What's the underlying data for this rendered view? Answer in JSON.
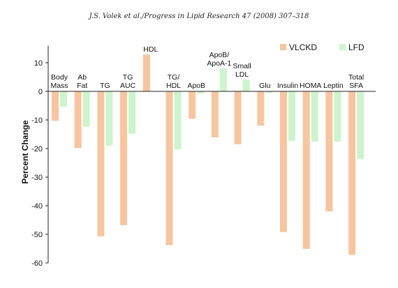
{
  "header": "J.S. Volek et al./Progress in Lipid Research 47 (2008) 307–318",
  "chart_data": {
    "type": "bar",
    "ylabel": "Percent Change",
    "ylim": [
      -60,
      15
    ],
    "yticks": [
      10,
      0,
      -10,
      -20,
      -30,
      -40,
      -50,
      -60
    ],
    "legend": "top-right",
    "categories": [
      [
        "Body",
        "Mass"
      ],
      [
        "Ab",
        "Fat"
      ],
      [
        "TG"
      ],
      [
        "TG",
        "AUC"
      ],
      [
        "HDL"
      ],
      [
        "TG/",
        "HDL"
      ],
      [
        "ApoB"
      ],
      [
        "ApoB/",
        "ApoA-1"
      ],
      [
        "Small",
        "LDL"
      ],
      [
        "Glu"
      ],
      [
        "Insulin"
      ],
      [
        "HOMA"
      ],
      [
        "Leptin"
      ],
      [
        "Total",
        "SFA"
      ]
    ],
    "series": [
      {
        "name": "VLCKD",
        "color": "#f7c59f",
        "values": [
          -10.3,
          -19.8,
          -50.7,
          -46.8,
          12.9,
          -53.8,
          -9.6,
          -16.1,
          -18.5,
          -12.0,
          -49.2,
          -55.1,
          -42.0,
          -57.2
        ]
      },
      {
        "name": "LFD",
        "color": "#cdf4cd",
        "values": [
          -5.4,
          -12.4,
          -19.0,
          -14.8,
          0,
          -20.3,
          -0.8,
          8.1,
          4.1,
          -0.6,
          -17.4,
          -17.6,
          -17.6,
          -23.7
        ]
      }
    ]
  }
}
